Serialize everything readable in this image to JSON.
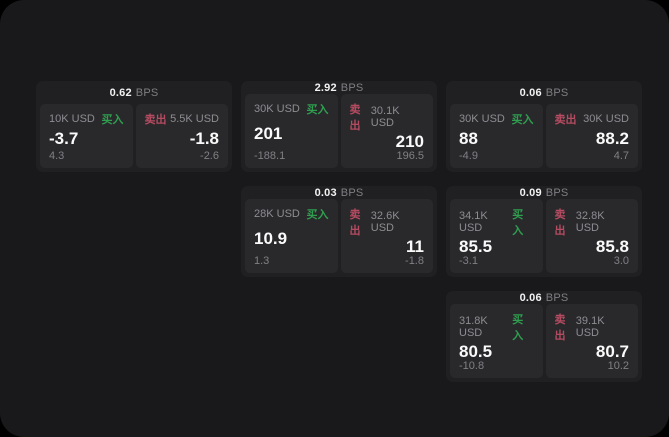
{
  "labels": {
    "buy": "买入",
    "sell": "卖出",
    "bps_unit": "BPS"
  },
  "colors": {
    "buy": "#2f9e4f",
    "sell": "#b54b61",
    "window_bg": "#19191b",
    "card_bg": "#202022",
    "panel_bg": "#29292c"
  },
  "cards": [
    {
      "bps": "0.62",
      "col": "1",
      "row": "1",
      "buy": {
        "size": "10K USD",
        "price": "-3.7",
        "sub": "4.3"
      },
      "sell": {
        "size": "5.5K USD",
        "price": "-1.8",
        "sub": "-2.6"
      }
    },
    {
      "bps": "2.92",
      "col": "2",
      "row": "1",
      "buy": {
        "size": "30K USD",
        "price": "201",
        "sub": "-188.1"
      },
      "sell": {
        "size": "30.1K USD",
        "price": "210",
        "sub": "196.5"
      }
    },
    {
      "bps": "0.06",
      "col": "3",
      "row": "1",
      "buy": {
        "size": "30K USD",
        "price": "88",
        "sub": "-4.9"
      },
      "sell": {
        "size": "30K USD",
        "price": "88.2",
        "sub": "4.7"
      }
    },
    {
      "bps": "0.03",
      "col": "2",
      "row": "2",
      "buy": {
        "size": "28K USD",
        "price": "10.9",
        "sub": "1.3"
      },
      "sell": {
        "size": "32.6K USD",
        "price": "11",
        "sub": "-1.8"
      }
    },
    {
      "bps": "0.09",
      "col": "3",
      "row": "2",
      "buy": {
        "size": "34.1K USD",
        "price": "85.5",
        "sub": "-3.1"
      },
      "sell": {
        "size": "32.8K USD",
        "price": "85.8",
        "sub": "3.0"
      }
    },
    {
      "bps": "0.06",
      "col": "3",
      "row": "3",
      "buy": {
        "size": "31.8K USD",
        "price": "80.5",
        "sub": "-10.8"
      },
      "sell": {
        "size": "39.1K USD",
        "price": "80.7",
        "sub": "10.2"
      }
    }
  ]
}
